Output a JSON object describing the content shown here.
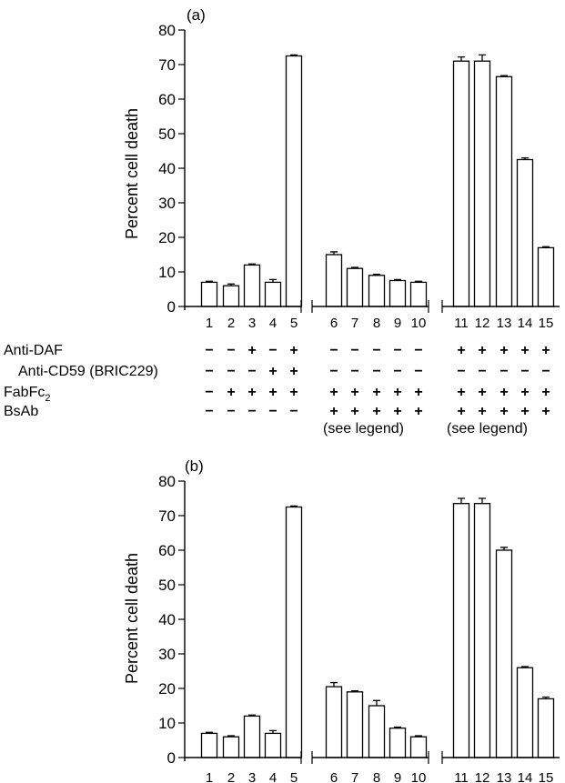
{
  "chart_data": [
    {
      "type": "bar",
      "panel_label": "(a)",
      "ylabel": "Percent cell death",
      "ylim": [
        0,
        80
      ],
      "yticks": [
        0,
        10,
        20,
        30,
        40,
        50,
        60,
        70,
        80
      ],
      "categories": [
        "1",
        "2",
        "3",
        "4",
        "5",
        "6",
        "7",
        "8",
        "9",
        "10",
        "11",
        "12",
        "13",
        "14",
        "15"
      ],
      "values": [
        7,
        6,
        12,
        7,
        72.5,
        15,
        11,
        9,
        7.5,
        7,
        71,
        71,
        66.5,
        42.5,
        17
      ],
      "errors": [
        0.3,
        0.5,
        0.3,
        0.8,
        0.3,
        0.8,
        0.3,
        0.3,
        0.3,
        0.3,
        1.2,
        1.8,
        0.3,
        0.5,
        0.3
      ]
    },
    {
      "type": "bar",
      "panel_label": "(b)",
      "ylabel": "Percent cell death",
      "ylim": [
        0,
        80
      ],
      "yticks": [
        0,
        10,
        20,
        30,
        40,
        50,
        60,
        70,
        80
      ],
      "categories": [
        "1",
        "2",
        "3",
        "4",
        "5",
        "6",
        "7",
        "8",
        "9",
        "10",
        "11",
        "12",
        "13",
        "14",
        "15"
      ],
      "values": [
        7,
        6,
        12,
        7,
        72.5,
        20.5,
        19,
        15,
        8.5,
        6,
        73.5,
        73.5,
        60,
        26,
        17
      ],
      "errors": [
        0.3,
        0.3,
        0.3,
        0.8,
        0.3,
        1.2,
        0.3,
        1.5,
        0.3,
        0.3,
        1.5,
        1.5,
        0.8,
        0.3,
        0.5
      ]
    }
  ],
  "treatment_table": {
    "rows": [
      {
        "label": "Anti-DAF",
        "signs": [
          "−",
          "−",
          "+",
          "−",
          "+",
          "−",
          "−",
          "−",
          "−",
          "−",
          "+",
          "+",
          "+",
          "+",
          "+"
        ]
      },
      {
        "label": "Anti-CD59 (BRIC229)",
        "signs": [
          "−",
          "−",
          "−",
          "+",
          "+",
          "−",
          "−",
          "−",
          "−",
          "−",
          "−",
          "−",
          "−",
          "−",
          "−"
        ]
      },
      {
        "label": "FabFc",
        "label_sub": "2",
        "signs": [
          "−",
          "+",
          "+",
          "+",
          "+",
          "+",
          "+",
          "+",
          "+",
          "+",
          "+",
          "+",
          "+",
          "+",
          "+"
        ]
      },
      {
        "label": "BsAb",
        "signs": [
          "−",
          "−",
          "−",
          "−",
          "−",
          "+",
          "+",
          "+",
          "+",
          "+",
          "+",
          "+",
          "+",
          "+",
          "+"
        ]
      }
    ],
    "notes": [
      "(see legend)",
      "(see legend)"
    ]
  }
}
